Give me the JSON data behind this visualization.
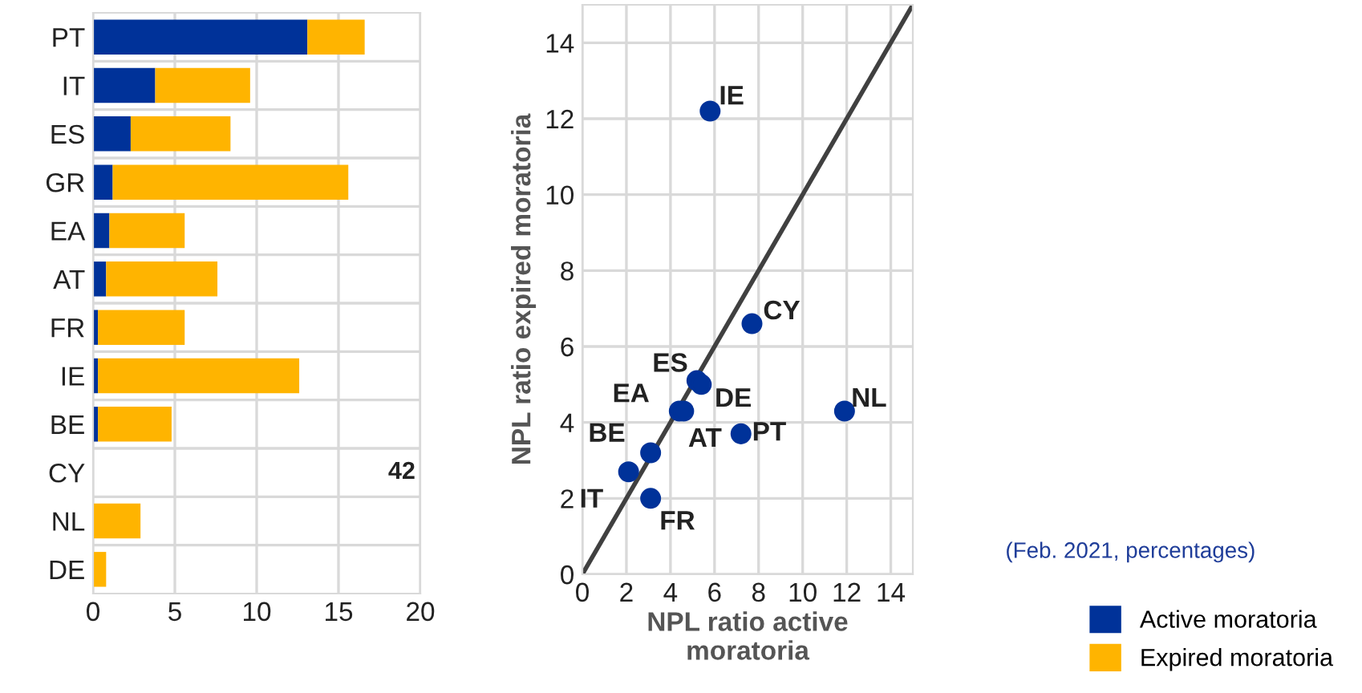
{
  "chart_data": [
    {
      "type": "bar",
      "orientation": "horizontal",
      "stacked": true,
      "categories": [
        "PT",
        "IT",
        "ES",
        "GR",
        "EA",
        "AT",
        "FR",
        "IE",
        "BE",
        "CY",
        "NL",
        "DE"
      ],
      "series": [
        {
          "name": "Active moratoria",
          "color": "#003299",
          "values": [
            13.1,
            3.8,
            2.3,
            1.2,
            1.0,
            0.8,
            0.3,
            0.3,
            0.3,
            0,
            0,
            0
          ]
        },
        {
          "name": "Expired moratoria",
          "color": "#ffb400",
          "values": [
            3.5,
            5.8,
            6.1,
            14.4,
            4.6,
            6.8,
            5.3,
            12.3,
            4.5,
            null,
            2.9,
            0.8
          ],
          "value_labels": [
            null,
            null,
            null,
            null,
            null,
            null,
            null,
            null,
            null,
            "42",
            null,
            null
          ]
        }
      ],
      "xlim": [
        0,
        20
      ],
      "xticks": [
        0,
        5,
        10,
        15,
        20
      ],
      "grid": true,
      "legend": "bottom right"
    },
    {
      "type": "scatter",
      "series": [
        {
          "color": "#003299",
          "x": [
            5.8,
            7.7,
            5.2,
            5.4,
            4.4,
            4.6,
            11.9,
            7.2,
            3.1,
            2.1,
            3.1
          ],
          "values": [
            12.2,
            6.6,
            5.1,
            5.0,
            4.3,
            4.3,
            4.3,
            3.7,
            3.2,
            2.7,
            2.0
          ],
          "marker": "circle"
        },
        {
          "type": "line",
          "color": "#404040",
          "x": [
            0,
            15
          ],
          "values": [
            0,
            15
          ],
          "marker": "none",
          "line_style": "solid"
        }
      ],
      "xlim": [
        0,
        15
      ],
      "ylim": [
        0,
        15
      ],
      "xticks": [
        0,
        2,
        4,
        6,
        8,
        10,
        12,
        14
      ],
      "yticks": [
        0,
        2,
        4,
        6,
        8,
        10,
        12,
        14
      ],
      "xlabel": "NPL ratio active\nmoratoria",
      "ylabel": "NPL ratio expired moratoria",
      "grid": true,
      "annotations": [
        {
          "text": "IE",
          "x": 5.8,
          "y": 12.2
        },
        {
          "text": "CY",
          "x": 7.7,
          "y": 6.6
        },
        {
          "text": "ES",
          "x": 5.2,
          "y": 5.1
        },
        {
          "text": "DE",
          "x": 5.4,
          "y": 5.0
        },
        {
          "text": "EA",
          "x": 4.4,
          "y": 4.3
        },
        {
          "text": "AT",
          "x": 4.6,
          "y": 4.3
        },
        {
          "text": "NL",
          "x": 11.9,
          "y": 4.3
        },
        {
          "text": "PT",
          "x": 7.2,
          "y": 3.7
        },
        {
          "text": "BE",
          "x": 3.1,
          "y": 3.2
        },
        {
          "text": "IT",
          "x": 2.1,
          "y": 2.7
        },
        {
          "text": "FR",
          "x": 3.1,
          "y": 2.0
        },
        "(Feb. 2021, percentages)"
      ]
    }
  ]
}
